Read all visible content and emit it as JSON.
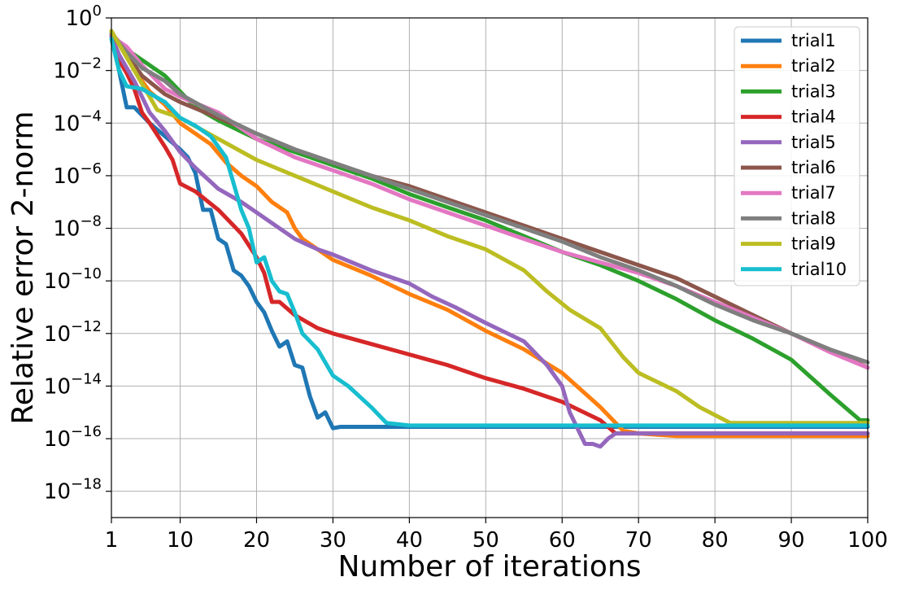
{
  "chart_data": {
    "type": "line",
    "xlabel": "Number of iterations",
    "ylabel": "Relative error 2-norm",
    "xlim": [
      1,
      100
    ],
    "ylim_log10": [
      -19,
      0
    ],
    "yscale": "log",
    "grid": true,
    "legend_position": "top-right",
    "x_ticks": [
      1,
      10,
      20,
      30,
      40,
      50,
      60,
      70,
      80,
      90,
      100
    ],
    "y_tick_exponents": [
      0,
      -2,
      -4,
      -6,
      -8,
      -10,
      -12,
      -14,
      -16,
      -18
    ],
    "y_tick_base": "10",
    "series": [
      {
        "name": "trial1",
        "color": "#1f77b4",
        "points": [
          [
            1,
            -0.5
          ],
          [
            2,
            -2.0
          ],
          [
            3,
            -3.4
          ],
          [
            4,
            -3.4
          ],
          [
            6,
            -4.0
          ],
          [
            8,
            -4.5
          ],
          [
            10,
            -5.0
          ],
          [
            11,
            -5.3
          ],
          [
            12,
            -5.9
          ],
          [
            13,
            -7.3
          ],
          [
            14,
            -7.3
          ],
          [
            15,
            -8.4
          ],
          [
            16,
            -8.6
          ],
          [
            17,
            -9.6
          ],
          [
            18,
            -9.8
          ],
          [
            19,
            -10.2
          ],
          [
            20,
            -10.8
          ],
          [
            21,
            -11.2
          ],
          [
            22,
            -11.9
          ],
          [
            23,
            -12.5
          ],
          [
            24,
            -12.3
          ],
          [
            25,
            -13.2
          ],
          [
            26,
            -13.3
          ],
          [
            27,
            -14.4
          ],
          [
            28,
            -15.2
          ],
          [
            29,
            -15.0
          ],
          [
            30,
            -15.6
          ],
          [
            31,
            -15.55
          ],
          [
            32,
            -15.55
          ],
          [
            35,
            -15.55
          ],
          [
            40,
            -15.55
          ],
          [
            50,
            -15.55
          ],
          [
            60,
            -15.55
          ],
          [
            70,
            -15.55
          ],
          [
            80,
            -15.55
          ],
          [
            90,
            -15.55
          ],
          [
            100,
            -15.55
          ]
        ]
      },
      {
        "name": "trial2",
        "color": "#ff7f0e",
        "points": [
          [
            1,
            -0.5
          ],
          [
            2,
            -1.0
          ],
          [
            3,
            -1.2
          ],
          [
            4,
            -2.0
          ],
          [
            6,
            -2.8
          ],
          [
            8,
            -3.3
          ],
          [
            10,
            -4.0
          ],
          [
            12,
            -4.4
          ],
          [
            14,
            -4.8
          ],
          [
            16,
            -5.5
          ],
          [
            18,
            -6.0
          ],
          [
            20,
            -6.4
          ],
          [
            22,
            -7.0
          ],
          [
            24,
            -7.4
          ],
          [
            25,
            -8.0
          ],
          [
            26,
            -8.4
          ],
          [
            28,
            -8.8
          ],
          [
            30,
            -9.2
          ],
          [
            35,
            -9.8
          ],
          [
            40,
            -10.5
          ],
          [
            45,
            -11.1
          ],
          [
            50,
            -11.9
          ],
          [
            55,
            -12.6
          ],
          [
            60,
            -13.5
          ],
          [
            65,
            -14.8
          ],
          [
            68,
            -15.7
          ],
          [
            70,
            -15.8
          ],
          [
            75,
            -15.9
          ],
          [
            80,
            -15.9
          ],
          [
            90,
            -15.9
          ],
          [
            100,
            -15.9
          ]
        ]
      },
      {
        "name": "trial3",
        "color": "#2ca02c",
        "points": [
          [
            1,
            -0.7
          ],
          [
            3,
            -1.2
          ],
          [
            5,
            -1.6
          ],
          [
            8,
            -2.2
          ],
          [
            10,
            -2.8
          ],
          [
            12,
            -3.4
          ],
          [
            15,
            -3.9
          ],
          [
            20,
            -4.6
          ],
          [
            25,
            -5.1
          ],
          [
            30,
            -5.6
          ],
          [
            35,
            -6.1
          ],
          [
            40,
            -6.7
          ],
          [
            45,
            -7.2
          ],
          [
            50,
            -7.7
          ],
          [
            55,
            -8.3
          ],
          [
            60,
            -8.9
          ],
          [
            65,
            -9.4
          ],
          [
            70,
            -10.0
          ],
          [
            75,
            -10.7
          ],
          [
            80,
            -11.5
          ],
          [
            85,
            -12.2
          ],
          [
            90,
            -13.0
          ],
          [
            95,
            -14.3
          ],
          [
            99,
            -15.3
          ],
          [
            100,
            -15.3
          ]
        ]
      },
      {
        "name": "trial4",
        "color": "#d62728",
        "points": [
          [
            1,
            -0.7
          ],
          [
            2,
            -1.6
          ],
          [
            3,
            -2.1
          ],
          [
            4,
            -2.7
          ],
          [
            5,
            -3.6
          ],
          [
            6,
            -4.0
          ],
          [
            8,
            -4.9
          ],
          [
            9,
            -5.4
          ],
          [
            10,
            -6.3
          ],
          [
            12,
            -6.6
          ],
          [
            15,
            -7.3
          ],
          [
            18,
            -8.2
          ],
          [
            20,
            -9.1
          ],
          [
            21,
            -9.7
          ],
          [
            22,
            -10.8
          ],
          [
            23,
            -10.8
          ],
          [
            25,
            -11.3
          ],
          [
            28,
            -11.8
          ],
          [
            30,
            -12.0
          ],
          [
            35,
            -12.4
          ],
          [
            40,
            -12.8
          ],
          [
            45,
            -13.2
          ],
          [
            50,
            -13.7
          ],
          [
            55,
            -14.1
          ],
          [
            60,
            -14.6
          ],
          [
            65,
            -15.3
          ],
          [
            67,
            -15.8
          ],
          [
            70,
            -15.8
          ],
          [
            80,
            -15.8
          ],
          [
            90,
            -15.8
          ],
          [
            100,
            -15.8
          ]
        ]
      },
      {
        "name": "trial5",
        "color": "#9467bd",
        "points": [
          [
            1,
            -0.7
          ],
          [
            2,
            -1.4
          ],
          [
            4,
            -2.4
          ],
          [
            6,
            -3.6
          ],
          [
            8,
            -4.3
          ],
          [
            10,
            -5.1
          ],
          [
            12,
            -5.7
          ],
          [
            15,
            -6.5
          ],
          [
            18,
            -7.0
          ],
          [
            20,
            -7.4
          ],
          [
            22,
            -7.8
          ],
          [
            25,
            -8.4
          ],
          [
            28,
            -8.8
          ],
          [
            30,
            -9.0
          ],
          [
            35,
            -9.6
          ],
          [
            40,
            -10.1
          ],
          [
            43,
            -10.6
          ],
          [
            46,
            -11.0
          ],
          [
            50,
            -11.6
          ],
          [
            55,
            -12.3
          ],
          [
            58,
            -13.2
          ],
          [
            60,
            -14.0
          ],
          [
            61,
            -15.0
          ],
          [
            62,
            -15.6
          ],
          [
            63,
            -16.2
          ],
          [
            64,
            -16.2
          ],
          [
            65,
            -16.3
          ],
          [
            66,
            -16.0
          ],
          [
            67,
            -15.8
          ],
          [
            70,
            -15.8
          ],
          [
            80,
            -15.8
          ],
          [
            90,
            -15.8
          ],
          [
            100,
            -15.8
          ]
        ]
      },
      {
        "name": "trial6",
        "color": "#8c564b",
        "points": [
          [
            1,
            -0.6
          ],
          [
            3,
            -1.4
          ],
          [
            5,
            -2.2
          ],
          [
            8,
            -2.9
          ],
          [
            10,
            -3.2
          ],
          [
            15,
            -3.8
          ],
          [
            20,
            -4.4
          ],
          [
            25,
            -5.0
          ],
          [
            30,
            -5.5
          ],
          [
            35,
            -6.0
          ],
          [
            40,
            -6.4
          ],
          [
            45,
            -6.9
          ],
          [
            50,
            -7.4
          ],
          [
            55,
            -7.9
          ],
          [
            60,
            -8.4
          ],
          [
            65,
            -8.9
          ],
          [
            70,
            -9.4
          ],
          [
            75,
            -9.9
          ],
          [
            80,
            -10.6
          ],
          [
            85,
            -11.3
          ],
          [
            90,
            -12.0
          ],
          [
            95,
            -12.6
          ],
          [
            100,
            -13.3
          ]
        ]
      },
      {
        "name": "trial7",
        "color": "#e377c2",
        "points": [
          [
            1,
            -0.6
          ],
          [
            2,
            -0.9
          ],
          [
            3,
            -1.1
          ],
          [
            5,
            -1.8
          ],
          [
            8,
            -2.7
          ],
          [
            10,
            -3.0
          ],
          [
            15,
            -3.6
          ],
          [
            20,
            -4.6
          ],
          [
            25,
            -5.3
          ],
          [
            30,
            -5.8
          ],
          [
            35,
            -6.3
          ],
          [
            40,
            -6.9
          ],
          [
            45,
            -7.4
          ],
          [
            50,
            -7.9
          ],
          [
            55,
            -8.4
          ],
          [
            60,
            -8.9
          ],
          [
            65,
            -9.3
          ],
          [
            70,
            -9.7
          ],
          [
            75,
            -10.2
          ],
          [
            80,
            -10.8
          ],
          [
            85,
            -11.4
          ],
          [
            90,
            -12.0
          ],
          [
            95,
            -12.7
          ],
          [
            100,
            -13.3
          ]
        ]
      },
      {
        "name": "trial8",
        "color": "#7f7f7f",
        "points": [
          [
            1,
            -0.6
          ],
          [
            3,
            -1.3
          ],
          [
            5,
            -1.9
          ],
          [
            8,
            -2.4
          ],
          [
            10,
            -2.9
          ],
          [
            15,
            -3.7
          ],
          [
            20,
            -4.4
          ],
          [
            25,
            -5.0
          ],
          [
            30,
            -5.5
          ],
          [
            35,
            -6.0
          ],
          [
            40,
            -6.5
          ],
          [
            45,
            -7.0
          ],
          [
            50,
            -7.5
          ],
          [
            55,
            -8.0
          ],
          [
            60,
            -8.5
          ],
          [
            65,
            -9.1
          ],
          [
            70,
            -9.6
          ],
          [
            75,
            -10.2
          ],
          [
            80,
            -10.9
          ],
          [
            85,
            -11.5
          ],
          [
            90,
            -12.0
          ],
          [
            95,
            -12.6
          ],
          [
            100,
            -13.1
          ]
        ]
      },
      {
        "name": "trial9",
        "color": "#bcbd22",
        "points": [
          [
            1,
            -0.5
          ],
          [
            3,
            -1.5
          ],
          [
            5,
            -2.5
          ],
          [
            7,
            -3.5
          ],
          [
            10,
            -3.8
          ],
          [
            15,
            -4.6
          ],
          [
            20,
            -5.4
          ],
          [
            25,
            -6.0
          ],
          [
            30,
            -6.6
          ],
          [
            35,
            -7.2
          ],
          [
            40,
            -7.7
          ],
          [
            45,
            -8.3
          ],
          [
            50,
            -8.8
          ],
          [
            55,
            -9.6
          ],
          [
            58,
            -10.4
          ],
          [
            61,
            -11.1
          ],
          [
            65,
            -11.8
          ],
          [
            68,
            -12.9
          ],
          [
            70,
            -13.5
          ],
          [
            75,
            -14.2
          ],
          [
            78,
            -14.8
          ],
          [
            80,
            -15.1
          ],
          [
            82,
            -15.4
          ],
          [
            85,
            -15.4
          ],
          [
            90,
            -15.4
          ],
          [
            100,
            -15.4
          ]
        ]
      },
      {
        "name": "trial10",
        "color": "#17becf",
        "points": [
          [
            1,
            -0.8
          ],
          [
            2,
            -2.0
          ],
          [
            3,
            -2.6
          ],
          [
            5,
            -2.7
          ],
          [
            8,
            -3.2
          ],
          [
            10,
            -3.8
          ],
          [
            12,
            -4.1
          ],
          [
            14,
            -4.5
          ],
          [
            16,
            -5.3
          ],
          [
            17,
            -6.3
          ],
          [
            18,
            -7.3
          ],
          [
            19,
            -8.0
          ],
          [
            20,
            -9.3
          ],
          [
            21,
            -9.1
          ],
          [
            22,
            -10.0
          ],
          [
            23,
            -10.4
          ],
          [
            24,
            -10.5
          ],
          [
            25,
            -11.2
          ],
          [
            26,
            -12.0
          ],
          [
            28,
            -12.6
          ],
          [
            30,
            -13.6
          ],
          [
            32,
            -14.0
          ],
          [
            35,
            -14.8
          ],
          [
            37,
            -15.4
          ],
          [
            40,
            -15.5
          ],
          [
            45,
            -15.5
          ],
          [
            50,
            -15.5
          ],
          [
            55,
            -15.5
          ],
          [
            60,
            -15.5
          ],
          [
            65,
            -15.5
          ],
          [
            70,
            -15.5
          ],
          [
            75,
            -15.5
          ],
          [
            80,
            -15.5
          ],
          [
            90,
            -15.5
          ],
          [
            100,
            -15.5
          ]
        ]
      }
    ]
  }
}
